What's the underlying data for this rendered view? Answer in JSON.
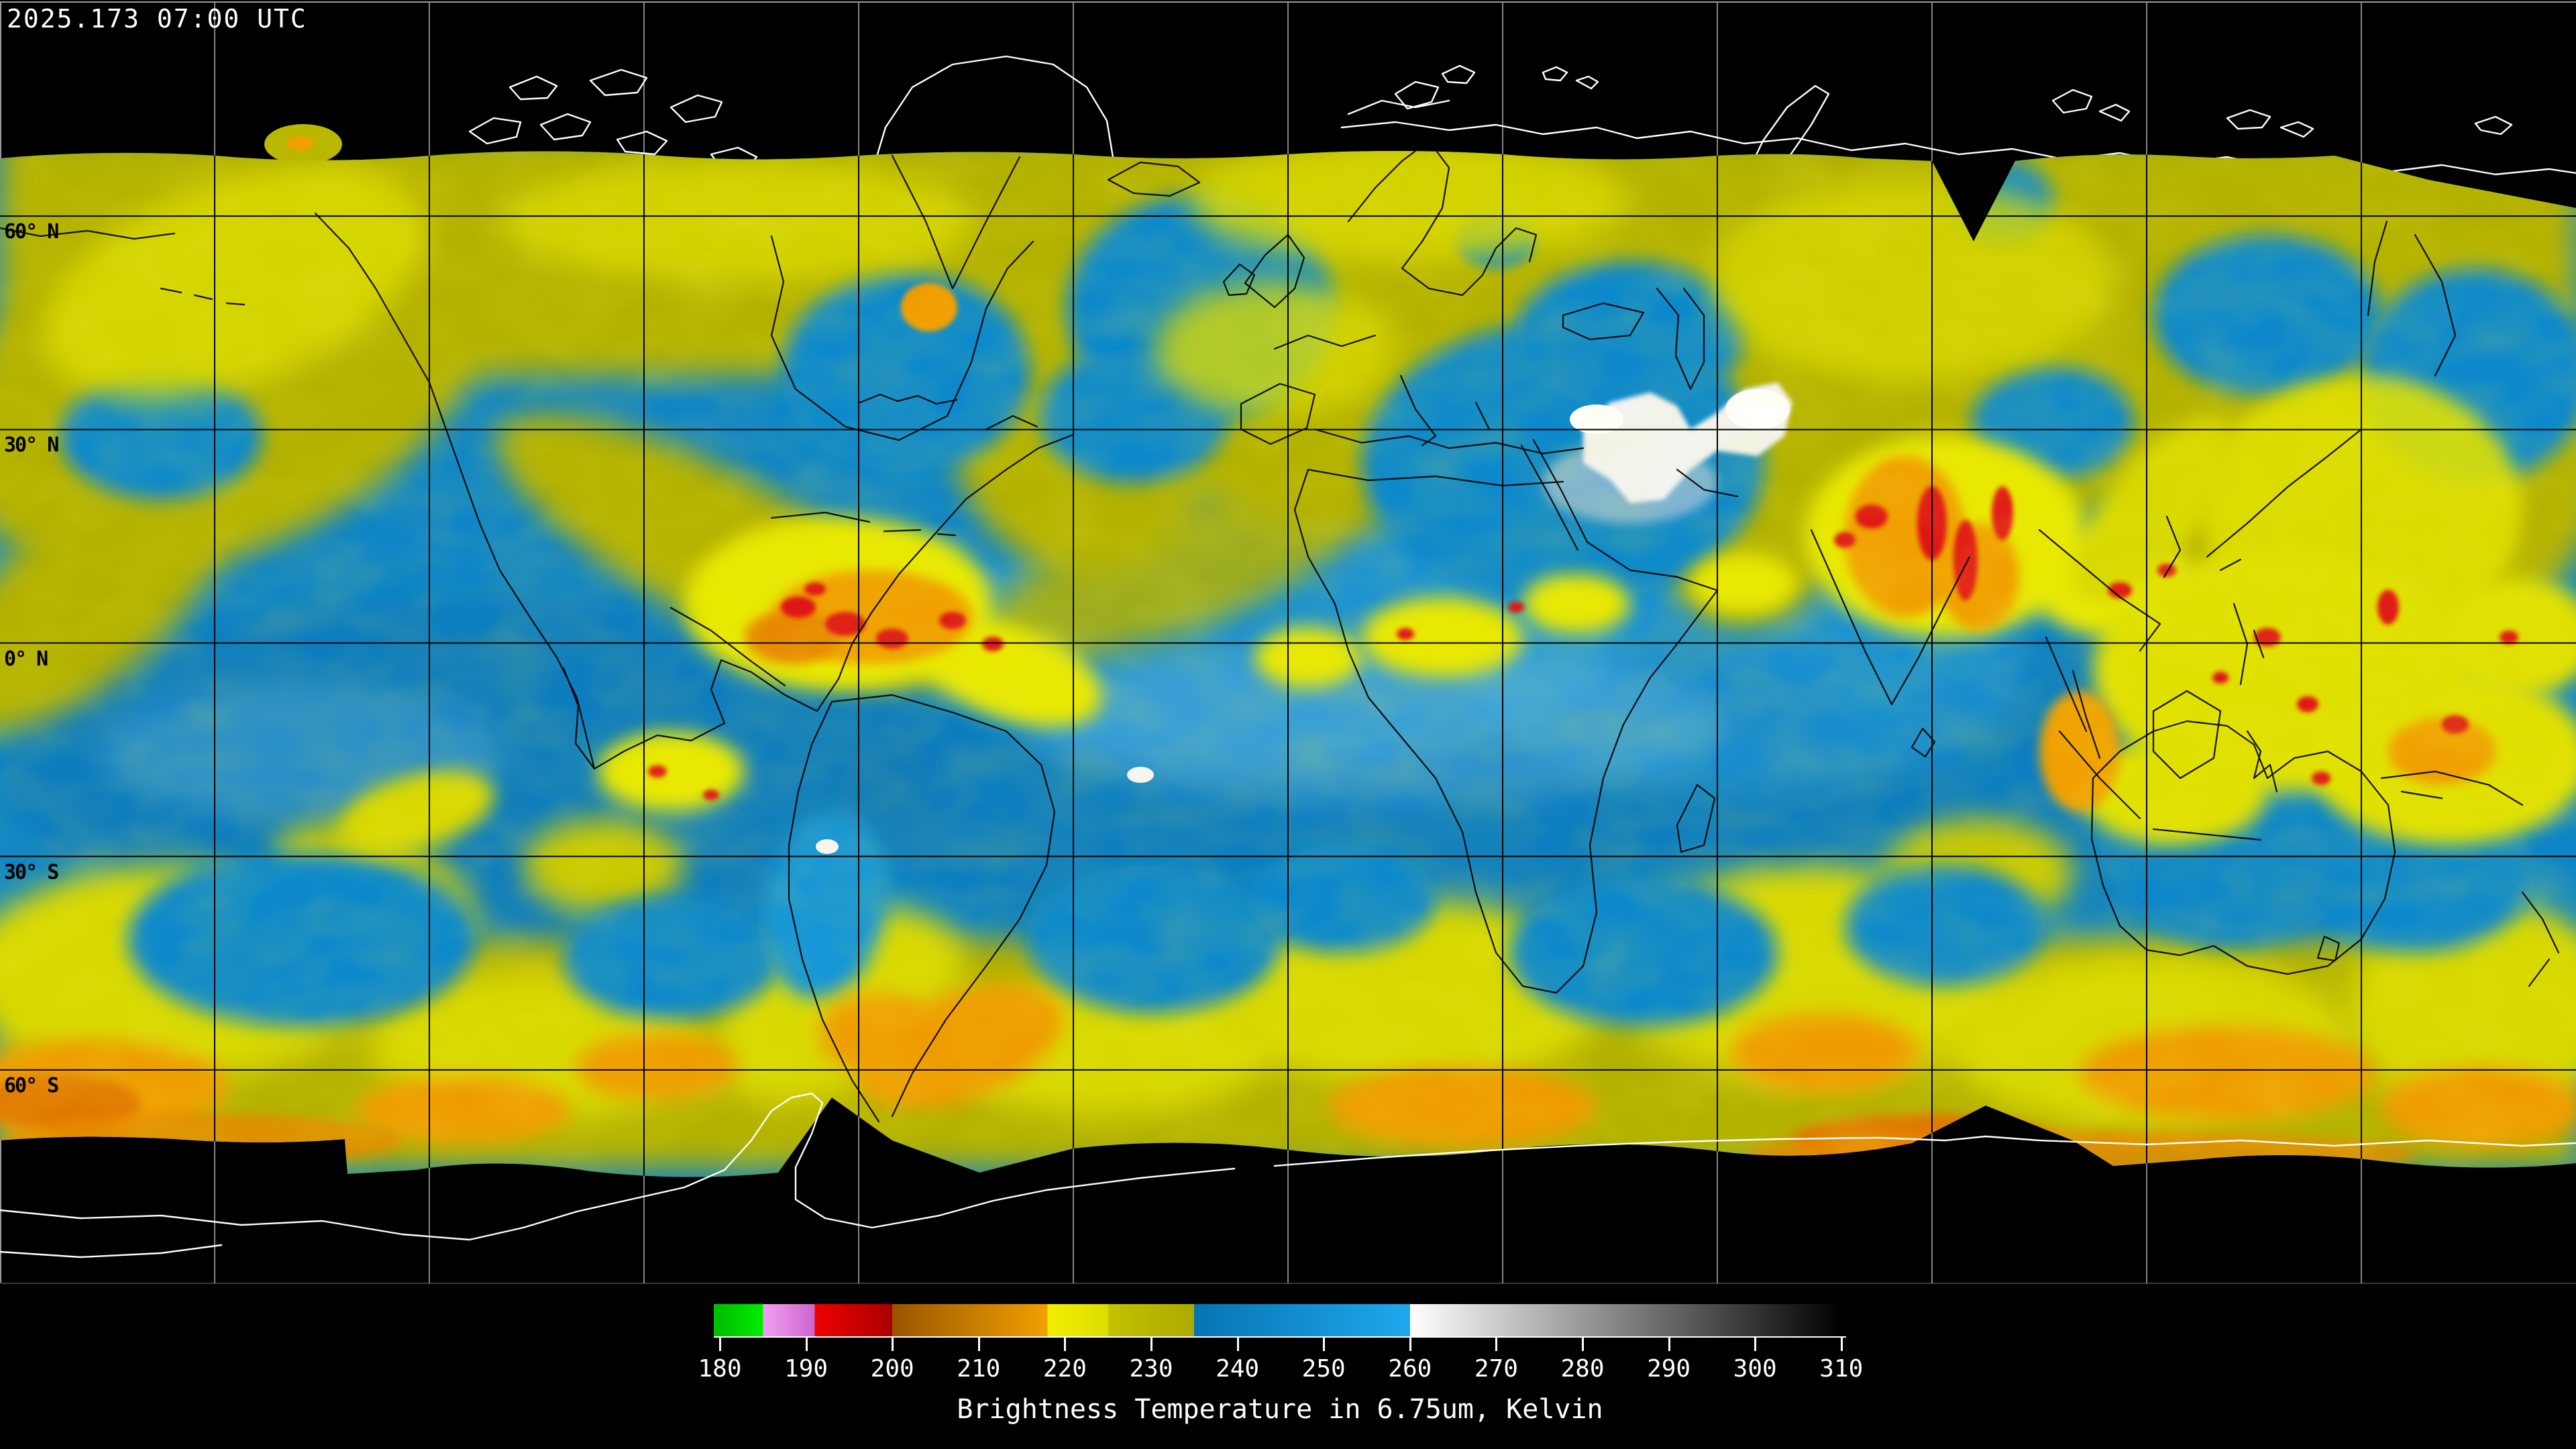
{
  "header": {
    "timestamp": "2025.173 07:00 UTC"
  },
  "map": {
    "latitude_labels": [
      {
        "label": "60° N",
        "lat": 60
      },
      {
        "label": "30° N",
        "lat": 30
      },
      {
        "label": "0° N",
        "lat": 0
      },
      {
        "label": "30° S",
        "lat": -30
      },
      {
        "label": "60° S",
        "lat": -60
      }
    ],
    "latitude_gridlines_deg": [
      60,
      30,
      0,
      -30,
      -60
    ],
    "longitude_gridlines_deg": [
      -150,
      -120,
      -90,
      -60,
      -30,
      0,
      30,
      60,
      90,
      120,
      150
    ],
    "background_color": "#000000",
    "dry_air_color": "#0e85c7",
    "moist_air_color": "#b3b100",
    "cold_cloud_color": "#e01414",
    "warm_surface_color": "#ffffff"
  },
  "colorbar": {
    "title": "Brightness Temperature in 6.75um, Kelvin",
    "unit": "Kelvin",
    "ticks": [
      180,
      190,
      200,
      210,
      220,
      230,
      240,
      250,
      260,
      270,
      280,
      290,
      300,
      310
    ],
    "segments": [
      {
        "from": 180,
        "to": 185,
        "c1": "#00c000",
        "c2": "#00ee00"
      },
      {
        "from": 185,
        "to": 191,
        "c1": "#f2a0f2",
        "c2": "#cc66cc"
      },
      {
        "from": 191,
        "to": 200,
        "c1": "#ee0000",
        "c2": "#aa0000"
      },
      {
        "from": 200,
        "to": 218,
        "c1": "#995500",
        "c2": "#f0a000"
      },
      {
        "from": 218,
        "to": 225,
        "c1": "#f0ee00",
        "c2": "#dedc00"
      },
      {
        "from": 225,
        "to": 235,
        "c1": "#c4c200",
        "c2": "#acaa00"
      },
      {
        "from": 235,
        "to": 260,
        "c1": "#0774b2",
        "c2": "#1ea8ee"
      },
      {
        "from": 260,
        "to": 310,
        "c1": "#ffffff",
        "c2": "#000000"
      }
    ]
  }
}
